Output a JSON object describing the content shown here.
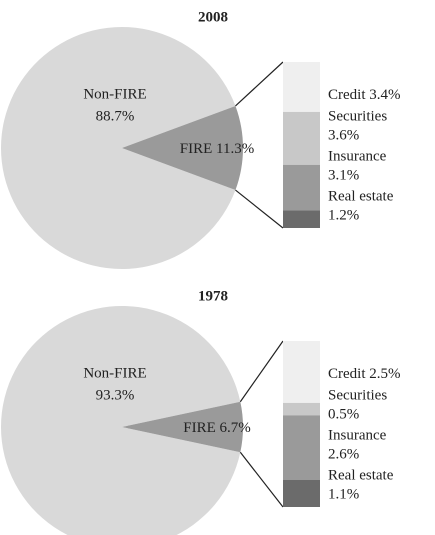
{
  "chart_data": [
    {
      "type": "pie",
      "title": "2008",
      "categories": [
        "Non-FIRE",
        "FIRE"
      ],
      "values": [
        88.7,
        11.3
      ],
      "value_labels": [
        "88.7%",
        "11.3%"
      ],
      "colors": [
        "#d9d9d9",
        "#9a9a9a"
      ],
      "breakdown": {
        "categories": [
          "Credit",
          "Securities",
          "Insurance",
          "Real estate"
        ],
        "values": [
          3.4,
          3.6,
          3.1,
          1.2
        ],
        "value_labels": [
          "3.4%",
          "3.6%",
          "3.1%",
          "1.2%"
        ],
        "colors": [
          "#efefef",
          "#c8c8c8",
          "#9a9a9a",
          "#6b6b6b"
        ]
      }
    },
    {
      "type": "pie",
      "title": "1978",
      "categories": [
        "Non-FIRE",
        "FIRE"
      ],
      "values": [
        93.3,
        6.7
      ],
      "value_labels": [
        "93.3%",
        "6.7%"
      ],
      "colors": [
        "#d9d9d9",
        "#9a9a9a"
      ],
      "breakdown": {
        "categories": [
          "Credit",
          "Securities",
          "Insurance",
          "Real estate"
        ],
        "values": [
          2.5,
          0.5,
          2.6,
          1.1
        ],
        "value_labels": [
          "2.5%",
          "0.5%",
          "2.6%",
          "1.1%"
        ],
        "colors": [
          "#efefef",
          "#c8c8c8",
          "#9a9a9a",
          "#6b6b6b"
        ]
      }
    }
  ]
}
